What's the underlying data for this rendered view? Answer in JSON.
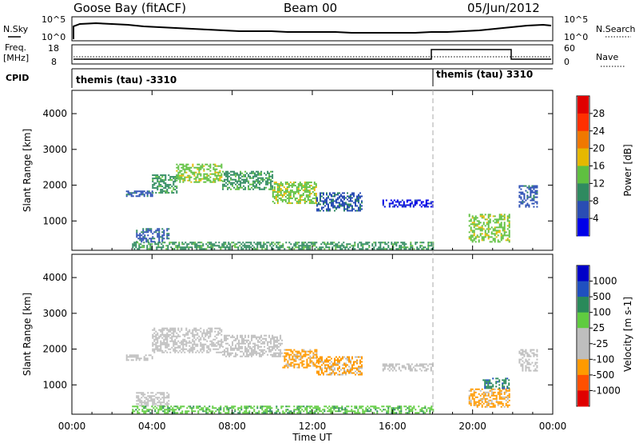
{
  "header": {
    "station": "Goose Bay (fitACF)",
    "beam": "Beam 00",
    "date": "05/Jun/2012"
  },
  "top_panels": {
    "nsky_label": "N.Sky",
    "nsky_ticks": [
      "10^5",
      "10^0"
    ],
    "nsearch_label": "N.Search",
    "nsearch_ticks": [
      "10^5",
      "10^0"
    ],
    "freq_label": "Freq.",
    "freq_unit": "[MHz]",
    "freq_ticks": [
      "18",
      "8"
    ],
    "nave_label": "Nave",
    "nave_ticks": [
      "60",
      "0"
    ],
    "cpid_label": "CPID",
    "cpid_segments": [
      {
        "label": "themis (tau) -3310",
        "start_hour": 0
      },
      {
        "label": "themis (tau) 3310",
        "start_hour": 18
      }
    ]
  },
  "colors": {
    "power_scale": [
      "#0000e8",
      "#2a4db4",
      "#2f8a60",
      "#5fc040",
      "#e6b800",
      "#f07800",
      "#ff3000",
      "#e00000"
    ],
    "velocity_scale": [
      "#e00000",
      "#ff5000",
      "#ff9a00",
      "#bebebe",
      "#bebebe",
      "#60cc40",
      "#2a8a5a",
      "#2050c0",
      "#0000c8"
    ],
    "grey": "#bebebe"
  },
  "chart_data": [
    {
      "type": "heatmap",
      "name": "power",
      "ylabel": "Slant Range [km]",
      "xlabel": "Time UT",
      "x_ticks": [
        "00:00",
        "04:00",
        "08:00",
        "12:00",
        "16:00",
        "20:00",
        "00:00"
      ],
      "xlim_hours": [
        0,
        24
      ],
      "y_ticks": [
        1000,
        2000,
        3000,
        4000
      ],
      "ylim": [
        180,
        4650
      ],
      "colorbar_label": "Power [dB]",
      "colorbar_ticks": [
        "28",
        "24",
        "20",
        "16",
        "12",
        "8",
        "4"
      ],
      "regions": [
        {
          "t0": 2.7,
          "t1": 4.0,
          "r0": 1700,
          "r1": 1850,
          "level": 1
        },
        {
          "t0": 4.0,
          "t1": 5.2,
          "r0": 1800,
          "r1": 2300,
          "level": 2
        },
        {
          "t0": 5.2,
          "t1": 7.5,
          "r0": 2100,
          "r1": 2600,
          "level": 3
        },
        {
          "t0": 7.5,
          "t1": 10.0,
          "r0": 1900,
          "r1": 2400,
          "level": 2
        },
        {
          "t0": 10.0,
          "t1": 12.2,
          "r0": 1500,
          "r1": 2100,
          "level": 3
        },
        {
          "t0": 12.2,
          "t1": 14.5,
          "r0": 1300,
          "r1": 1800,
          "level": 1
        },
        {
          "t0": 3.2,
          "t1": 4.8,
          "r0": 400,
          "r1": 800,
          "level": 1
        },
        {
          "t0": 3.0,
          "t1": 18.0,
          "r0": 200,
          "r1": 420,
          "level": 2
        },
        {
          "t0": 15.5,
          "t1": 18.0,
          "r0": 1400,
          "r1": 1600,
          "level": 0
        },
        {
          "t0": 19.8,
          "t1": 21.8,
          "r0": 400,
          "r1": 1200,
          "level": 3
        },
        {
          "t0": 22.3,
          "t1": 23.2,
          "r0": 1400,
          "r1": 2000,
          "level": 1
        }
      ]
    },
    {
      "type": "heatmap",
      "name": "velocity",
      "ylabel": "Slant Range [km]",
      "xlabel": "Time UT",
      "x_ticks": [
        "00:00",
        "04:00",
        "08:00",
        "12:00",
        "16:00",
        "20:00",
        "00:00"
      ],
      "xlim_hours": [
        0,
        24
      ],
      "y_ticks": [
        1000,
        2000,
        3000,
        4000
      ],
      "ylim": [
        180,
        4650
      ],
      "colorbar_label": "Velocity [m s-1]",
      "colorbar_ticks": [
        "1000",
        "500",
        "100",
        "25",
        "-25",
        "-100",
        "-500",
        "-1000"
      ],
      "regions": [
        {
          "t0": 2.7,
          "t1": 4.0,
          "r0": 1700,
          "r1": 1850,
          "level": 3
        },
        {
          "t0": 4.0,
          "t1": 7.5,
          "r0": 1900,
          "r1": 2600,
          "level": 3
        },
        {
          "t0": 7.5,
          "t1": 10.5,
          "r0": 1800,
          "r1": 2400,
          "level": 3
        },
        {
          "t0": 10.5,
          "t1": 12.2,
          "r0": 1500,
          "r1": 2000,
          "level": 2
        },
        {
          "t0": 12.2,
          "t1": 14.5,
          "r0": 1300,
          "r1": 1800,
          "level": 2
        },
        {
          "t0": 3.2,
          "t1": 4.8,
          "r0": 400,
          "r1": 800,
          "level": 3
        },
        {
          "t0": 3.0,
          "t1": 18.0,
          "r0": 200,
          "r1": 420,
          "level": 5
        },
        {
          "t0": 15.5,
          "t1": 18.0,
          "r0": 1400,
          "r1": 1600,
          "level": 3
        },
        {
          "t0": 19.8,
          "t1": 21.8,
          "r0": 400,
          "r1": 900,
          "level": 2
        },
        {
          "t0": 20.5,
          "t1": 21.8,
          "r0": 900,
          "r1": 1200,
          "level": 6
        },
        {
          "t0": 22.3,
          "t1": 23.2,
          "r0": 1400,
          "r1": 2000,
          "level": 3
        }
      ]
    }
  ]
}
